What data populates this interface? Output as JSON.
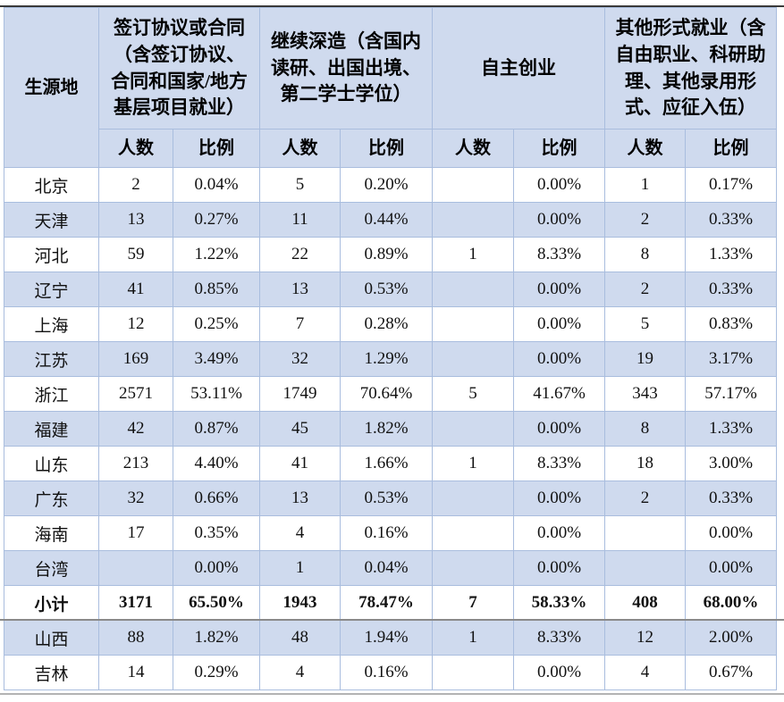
{
  "colors": {
    "cell_fill_blue": "#cfdaee",
    "border_blue": "#a9bdde",
    "page_break_line_dark": "#3a3a3a",
    "page_break_line_mid": "#8a8a8a",
    "page_break_line_light": "#b3b3b3",
    "text": "#000000"
  },
  "table": {
    "region_header": "生源地",
    "groups": [
      {
        "label": "签订协议或合同（含签订协议、合同和国家/地方基层项目就业）"
      },
      {
        "label": "继续深造（含国内读研、出国出境、第二学士学位）"
      },
      {
        "label": "自主创业"
      },
      {
        "label": "其他形式就业（含自由职业、科研助理、其他录用形式、应征入伍）"
      }
    ],
    "sub_headers": [
      "人数",
      "比例"
    ],
    "rows": [
      {
        "region": "北京",
        "cells": [
          "2",
          "0.04%",
          "5",
          "0.20%",
          "",
          "0.00%",
          "1",
          "0.17%"
        ],
        "bold": false,
        "shade": false
      },
      {
        "region": "天津",
        "cells": [
          "13",
          "0.27%",
          "11",
          "0.44%",
          "",
          "0.00%",
          "2",
          "0.33%"
        ],
        "bold": false,
        "shade": true
      },
      {
        "region": "河北",
        "cells": [
          "59",
          "1.22%",
          "22",
          "0.89%",
          "1",
          "8.33%",
          "8",
          "1.33%"
        ],
        "bold": false,
        "shade": false
      },
      {
        "region": "辽宁",
        "cells": [
          "41",
          "0.85%",
          "13",
          "0.53%",
          "",
          "0.00%",
          "2",
          "0.33%"
        ],
        "bold": false,
        "shade": true
      },
      {
        "region": "上海",
        "cells": [
          "12",
          "0.25%",
          "7",
          "0.28%",
          "",
          "0.00%",
          "5",
          "0.83%"
        ],
        "bold": false,
        "shade": false
      },
      {
        "region": "江苏",
        "cells": [
          "169",
          "3.49%",
          "32",
          "1.29%",
          "",
          "0.00%",
          "19",
          "3.17%"
        ],
        "bold": false,
        "shade": true
      },
      {
        "region": "浙江",
        "cells": [
          "2571",
          "53.11%",
          "1749",
          "70.64%",
          "5",
          "41.67%",
          "343",
          "57.17%"
        ],
        "bold": false,
        "shade": false
      },
      {
        "region": "福建",
        "cells": [
          "42",
          "0.87%",
          "45",
          "1.82%",
          "",
          "0.00%",
          "8",
          "1.33%"
        ],
        "bold": false,
        "shade": true
      },
      {
        "region": "山东",
        "cells": [
          "213",
          "4.40%",
          "41",
          "1.66%",
          "1",
          "8.33%",
          "18",
          "3.00%"
        ],
        "bold": false,
        "shade": false
      },
      {
        "region": "广东",
        "cells": [
          "32",
          "0.66%",
          "13",
          "0.53%",
          "",
          "0.00%",
          "2",
          "0.33%"
        ],
        "bold": false,
        "shade": true
      },
      {
        "region": "海南",
        "cells": [
          "17",
          "0.35%",
          "4",
          "0.16%",
          "",
          "0.00%",
          "",
          "0.00%"
        ],
        "bold": false,
        "shade": false
      },
      {
        "region": "台湾",
        "cells": [
          "",
          "0.00%",
          "1",
          "0.04%",
          "",
          "0.00%",
          "",
          "0.00%"
        ],
        "bold": false,
        "shade": true
      },
      {
        "region": "小计",
        "cells": [
          "3171",
          "65.50%",
          "1943",
          "78.47%",
          "7",
          "58.33%",
          "408",
          "68.00%"
        ],
        "bold": true,
        "shade": false
      },
      {
        "region": "山西",
        "cells": [
          "88",
          "1.82%",
          "48",
          "1.94%",
          "1",
          "8.33%",
          "12",
          "2.00%"
        ],
        "bold": false,
        "shade": true
      },
      {
        "region": "吉林",
        "cells": [
          "14",
          "0.29%",
          "4",
          "0.16%",
          "",
          "0.00%",
          "4",
          "0.67%"
        ],
        "bold": false,
        "shade": false
      }
    ]
  }
}
